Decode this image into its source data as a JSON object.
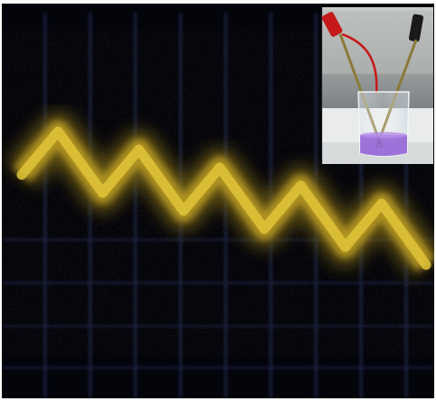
{
  "scene": {
    "main_view": "oscilloscope-screen",
    "trace_color": "#e0c43a",
    "grid_color": "#2b3a6a",
    "background_color": "#04040b",
    "cycles_visible": 5
  },
  "inset": {
    "subject": "beaker-with-electrodes",
    "liquid_color": "#8f5fd6",
    "clip_colors": [
      "#c51818",
      "#1a1a1a"
    ]
  }
}
